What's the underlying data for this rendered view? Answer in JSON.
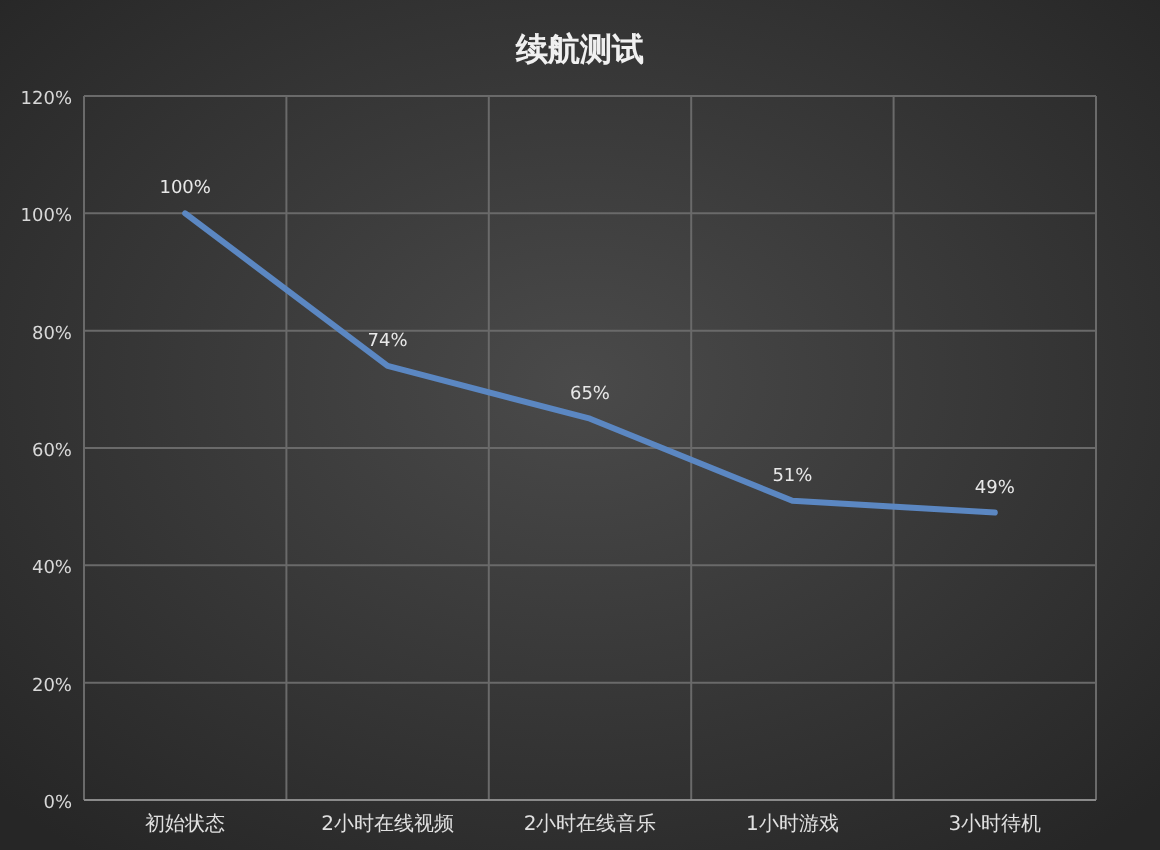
{
  "chart_data": {
    "type": "line",
    "title": "续航测试",
    "categories": [
      "初始状态",
      "2小时在线视频",
      "2小时在线音乐",
      "1小时游戏",
      "3小时待机"
    ],
    "series": [
      {
        "color": "#5b87c2",
        "values": [
          100,
          74,
          65,
          51,
          49
        ],
        "value_labels": [
          "100%",
          "74%",
          "65%",
          "51%",
          "49%"
        ]
      }
    ],
    "ylim": [
      0,
      120
    ],
    "yticks": [
      {
        "value": 0,
        "label": "0%"
      },
      {
        "value": 20,
        "label": "20%"
      },
      {
        "value": 40,
        "label": "40%"
      },
      {
        "value": 60,
        "label": "60%"
      },
      {
        "value": 80,
        "label": "80%"
      },
      {
        "value": 100,
        "label": "100%"
      },
      {
        "value": 120,
        "label": "120%"
      }
    ],
    "grid": true
  }
}
